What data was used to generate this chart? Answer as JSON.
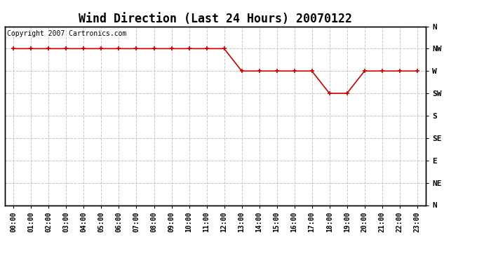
{
  "title": "Wind Direction (Last 24 Hours) 20070122",
  "copyright_text": "Copyright 2007 Cartronics.com",
  "background_color": "#ffffff",
  "plot_bg_color": "#ffffff",
  "line_color": "#cc0000",
  "marker_color": "#cc0000",
  "grid_color": "#c8c8c8",
  "x_labels": [
    "00:00",
    "01:00",
    "02:00",
    "03:00",
    "04:00",
    "05:00",
    "06:00",
    "07:00",
    "08:00",
    "09:00",
    "10:00",
    "11:00",
    "12:00",
    "13:00",
    "14:00",
    "15:00",
    "16:00",
    "17:00",
    "18:00",
    "19:00",
    "20:00",
    "21:00",
    "22:00",
    "23:00"
  ],
  "y_labels": [
    "N",
    "NW",
    "W",
    "SW",
    "S",
    "SE",
    "E",
    "NE",
    "N"
  ],
  "y_values": [
    8,
    7,
    6,
    5,
    4,
    3,
    2,
    1,
    0
  ],
  "data_y": [
    7,
    7,
    7,
    7,
    7,
    7,
    7,
    7,
    7,
    7,
    7,
    7,
    7,
    6,
    6,
    6,
    6,
    6,
    5,
    5,
    6,
    6,
    6,
    6
  ],
  "title_fontsize": 12,
  "copyright_fontsize": 7,
  "tick_fontsize": 7,
  "ylabel_fontsize": 8
}
